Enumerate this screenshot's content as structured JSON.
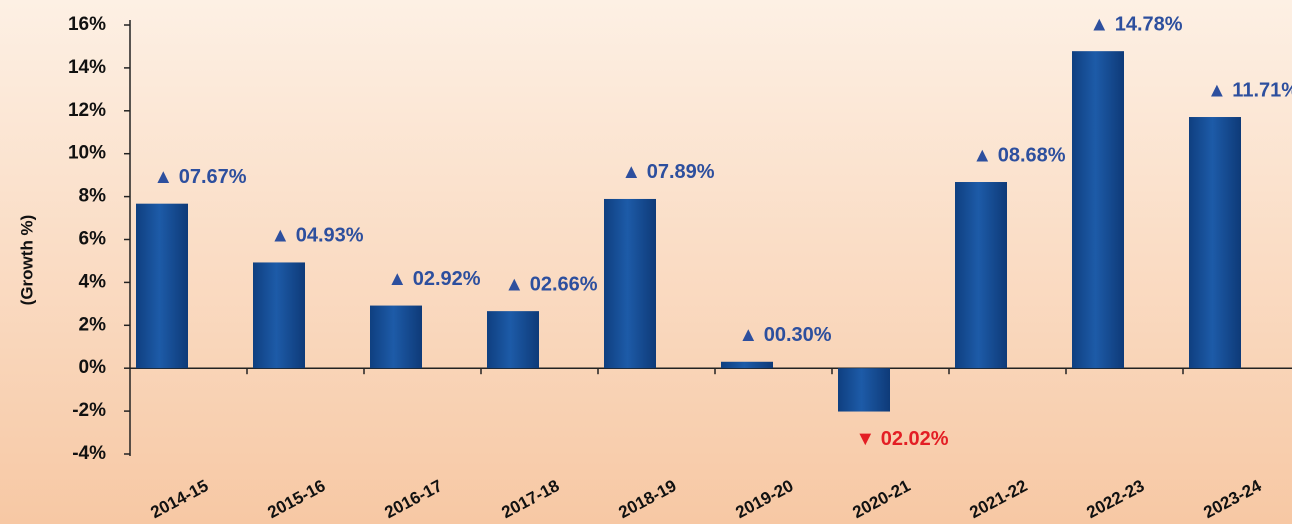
{
  "chart_data": {
    "type": "bar",
    "y_label": "(Growth %)",
    "categories": [
      "2014-15",
      "2015-16",
      "2016-17",
      "2017-18",
      "2018-19",
      "2019-20",
      "2020-21",
      "2021-22",
      "2022-23",
      "2023-24"
    ],
    "values": [
      7.67,
      4.93,
      2.92,
      2.66,
      7.89,
      0.3,
      -2.02,
      8.68,
      14.78,
      11.71
    ],
    "value_labels": [
      "▲ 07.67%",
      "▲ 04.93%",
      "▲ 02.92%",
      "▲ 02.66%",
      "▲ 07.89%",
      "▲ 00.30%",
      "▼ 02.02%",
      "▲ 08.68%",
      "▲ 14.78%",
      "▲ 11.71%"
    ],
    "color": "#1d5ba8",
    "label_color": "#2d4f9e",
    "negative_label_color": "#e31e24",
    "ylim": [
      -4,
      16
    ],
    "yticks": [
      {
        "value": -4,
        "label": "-4%"
      },
      {
        "value": -2,
        "label": "-2%"
      },
      {
        "value": 0,
        "label": "0%"
      },
      {
        "value": 2,
        "label": "2%"
      },
      {
        "value": 4,
        "label": "4%"
      },
      {
        "value": 6,
        "label": "6%"
      },
      {
        "value": 8,
        "label": "8%"
      },
      {
        "value": 10,
        "label": "10%"
      },
      {
        "value": 12,
        "label": "12%"
      },
      {
        "value": 14,
        "label": "14%"
      },
      {
        "value": 16,
        "label": "16%"
      }
    ]
  }
}
